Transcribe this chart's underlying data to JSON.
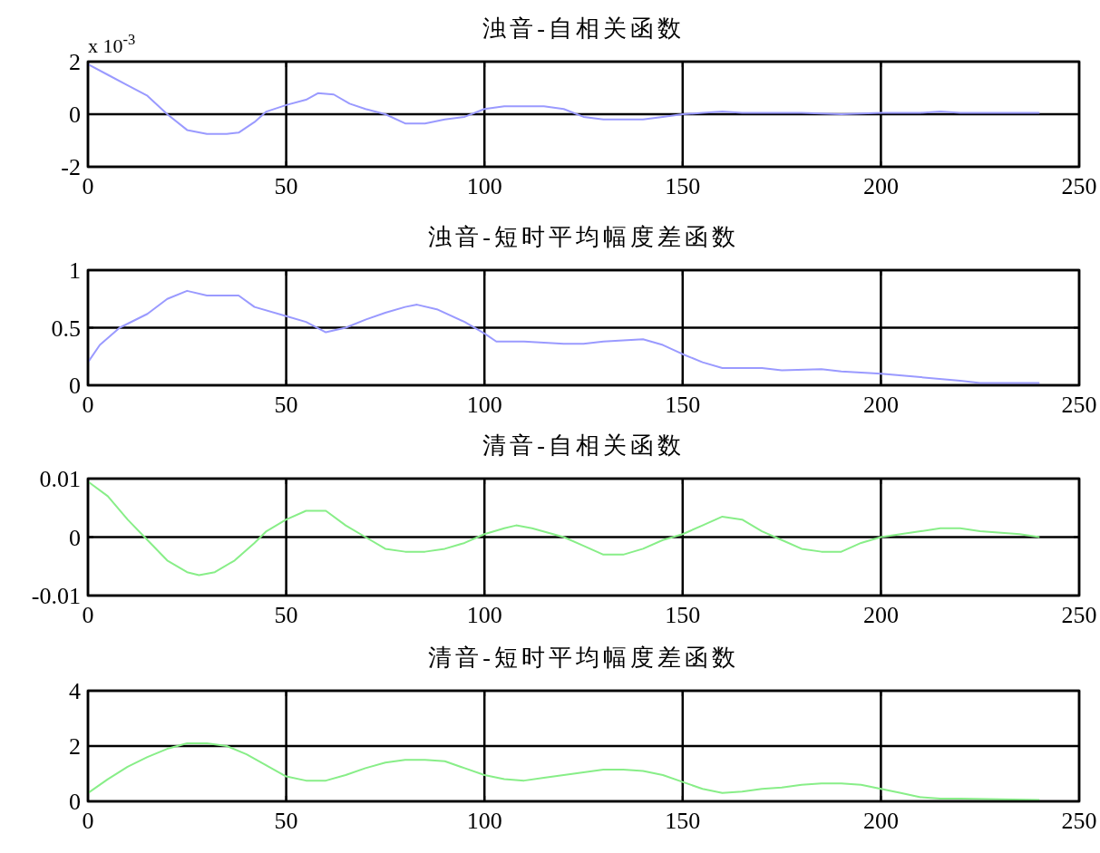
{
  "chart_data": [
    {
      "type": "line",
      "title": "浊音-自相关函数",
      "annotations": [
        "x 10$^{-3}$"
      ],
      "xlim": [
        0,
        250
      ],
      "xticks": [
        0,
        50,
        100,
        150,
        200,
        250
      ],
      "ylim": [
        -2,
        2
      ],
      "yticks": [
        -2,
        0,
        2
      ],
      "grid": true,
      "x": [
        0,
        5,
        10,
        15,
        20,
        25,
        30,
        35,
        38,
        42,
        45,
        50,
        55,
        58,
        62,
        66,
        70,
        75,
        80,
        85,
        90,
        95,
        100,
        105,
        115,
        120,
        125,
        130,
        140,
        145,
        150,
        155,
        160,
        165,
        180,
        190,
        200,
        210,
        215,
        220,
        240
      ],
      "series": [
        {
          "color": "#9a9aff",
          "values": [
            1.9,
            1.5,
            1.1,
            0.7,
            0.0,
            -0.6,
            -0.75,
            -0.75,
            -0.7,
            -0.3,
            0.1,
            0.35,
            0.55,
            0.8,
            0.75,
            0.4,
            0.2,
            0.0,
            -0.35,
            -0.35,
            -0.2,
            -0.1,
            0.2,
            0.3,
            0.3,
            0.2,
            -0.1,
            -0.2,
            -0.2,
            -0.1,
            0.0,
            0.05,
            0.1,
            0.05,
            0.05,
            0.0,
            0.05,
            0.05,
            0.1,
            0.05,
            0.05
          ]
        }
      ]
    },
    {
      "type": "line",
      "title": "浊音-短时平均幅度差函数",
      "xlim": [
        0,
        250
      ],
      "xticks": [
        0,
        50,
        100,
        150,
        200,
        250
      ],
      "ylim": [
        0,
        1
      ],
      "yticks": [
        0,
        0.5,
        1
      ],
      "grid": true,
      "x": [
        0,
        3,
        8,
        15,
        20,
        25,
        30,
        35,
        38,
        42,
        50,
        55,
        60,
        65,
        70,
        75,
        80,
        83,
        88,
        95,
        100,
        103,
        110,
        120,
        125,
        130,
        140,
        145,
        150,
        155,
        160,
        170,
        175,
        185,
        190,
        200,
        210,
        220,
        225,
        240
      ],
      "series": [
        {
          "color": "#9a9aff",
          "values": [
            0.2,
            0.35,
            0.5,
            0.62,
            0.75,
            0.82,
            0.78,
            0.78,
            0.78,
            0.68,
            0.6,
            0.55,
            0.46,
            0.5,
            0.57,
            0.63,
            0.68,
            0.7,
            0.66,
            0.55,
            0.45,
            0.38,
            0.38,
            0.36,
            0.36,
            0.38,
            0.4,
            0.35,
            0.27,
            0.2,
            0.15,
            0.15,
            0.13,
            0.14,
            0.12,
            0.1,
            0.07,
            0.04,
            0.02,
            0.02
          ]
        }
      ]
    },
    {
      "type": "line",
      "title": "清音-自相关函数",
      "xlim": [
        0,
        250
      ],
      "xticks": [
        0,
        50,
        100,
        150,
        200,
        250
      ],
      "ylim": [
        -0.01,
        0.01
      ],
      "yticks": [
        -0.01,
        0,
        0.01
      ],
      "grid": true,
      "x": [
        0,
        5,
        10,
        15,
        20,
        25,
        28,
        32,
        37,
        42,
        45,
        50,
        55,
        60,
        65,
        70,
        75,
        80,
        85,
        90,
        95,
        100,
        105,
        108,
        112,
        120,
        125,
        130,
        135,
        140,
        145,
        150,
        155,
        160,
        165,
        170,
        175,
        180,
        185,
        190,
        195,
        200,
        205,
        210,
        215,
        220,
        225,
        235,
        240
      ],
      "series": [
        {
          "color": "#88ee88",
          "values": [
            0.0095,
            0.007,
            0.003,
            -0.0005,
            -0.004,
            -0.006,
            -0.0065,
            -0.006,
            -0.004,
            -0.001,
            0.001,
            0.003,
            0.0045,
            0.0045,
            0.002,
            0.0,
            -0.002,
            -0.0025,
            -0.0025,
            -0.002,
            -0.001,
            0.0005,
            0.0015,
            0.002,
            0.0015,
            0.0,
            -0.0015,
            -0.003,
            -0.003,
            -0.002,
            -0.0005,
            0.0005,
            0.002,
            0.0035,
            0.003,
            0.001,
            -0.0005,
            -0.002,
            -0.0025,
            -0.0025,
            -0.001,
            0.0,
            0.0005,
            0.001,
            0.0015,
            0.0015,
            0.001,
            0.0005,
            0.0
          ]
        }
      ]
    },
    {
      "type": "line",
      "title": "清音-短时平均幅度差函数",
      "xlim": [
        0,
        250
      ],
      "xticks": [
        0,
        50,
        100,
        150,
        200,
        250
      ],
      "ylim": [
        0,
        4
      ],
      "yticks": [
        0,
        2,
        4
      ],
      "grid": true,
      "x": [
        0,
        5,
        10,
        15,
        20,
        25,
        30,
        35,
        40,
        45,
        50,
        55,
        60,
        65,
        70,
        75,
        80,
        85,
        90,
        95,
        100,
        105,
        110,
        115,
        120,
        125,
        130,
        135,
        140,
        145,
        150,
        155,
        160,
        165,
        170,
        175,
        180,
        185,
        190,
        195,
        200,
        205,
        210,
        215,
        220,
        240
      ],
      "series": [
        {
          "color": "#88ee88",
          "values": [
            0.3,
            0.8,
            1.25,
            1.6,
            1.9,
            2.1,
            2.1,
            2.0,
            1.7,
            1.3,
            0.9,
            0.75,
            0.75,
            0.95,
            1.2,
            1.4,
            1.5,
            1.5,
            1.45,
            1.2,
            0.95,
            0.8,
            0.75,
            0.85,
            0.95,
            1.05,
            1.15,
            1.15,
            1.1,
            0.95,
            0.7,
            0.45,
            0.3,
            0.35,
            0.45,
            0.5,
            0.6,
            0.65,
            0.65,
            0.6,
            0.45,
            0.3,
            0.15,
            0.1,
            0.1,
            0.05
          ]
        }
      ]
    }
  ]
}
